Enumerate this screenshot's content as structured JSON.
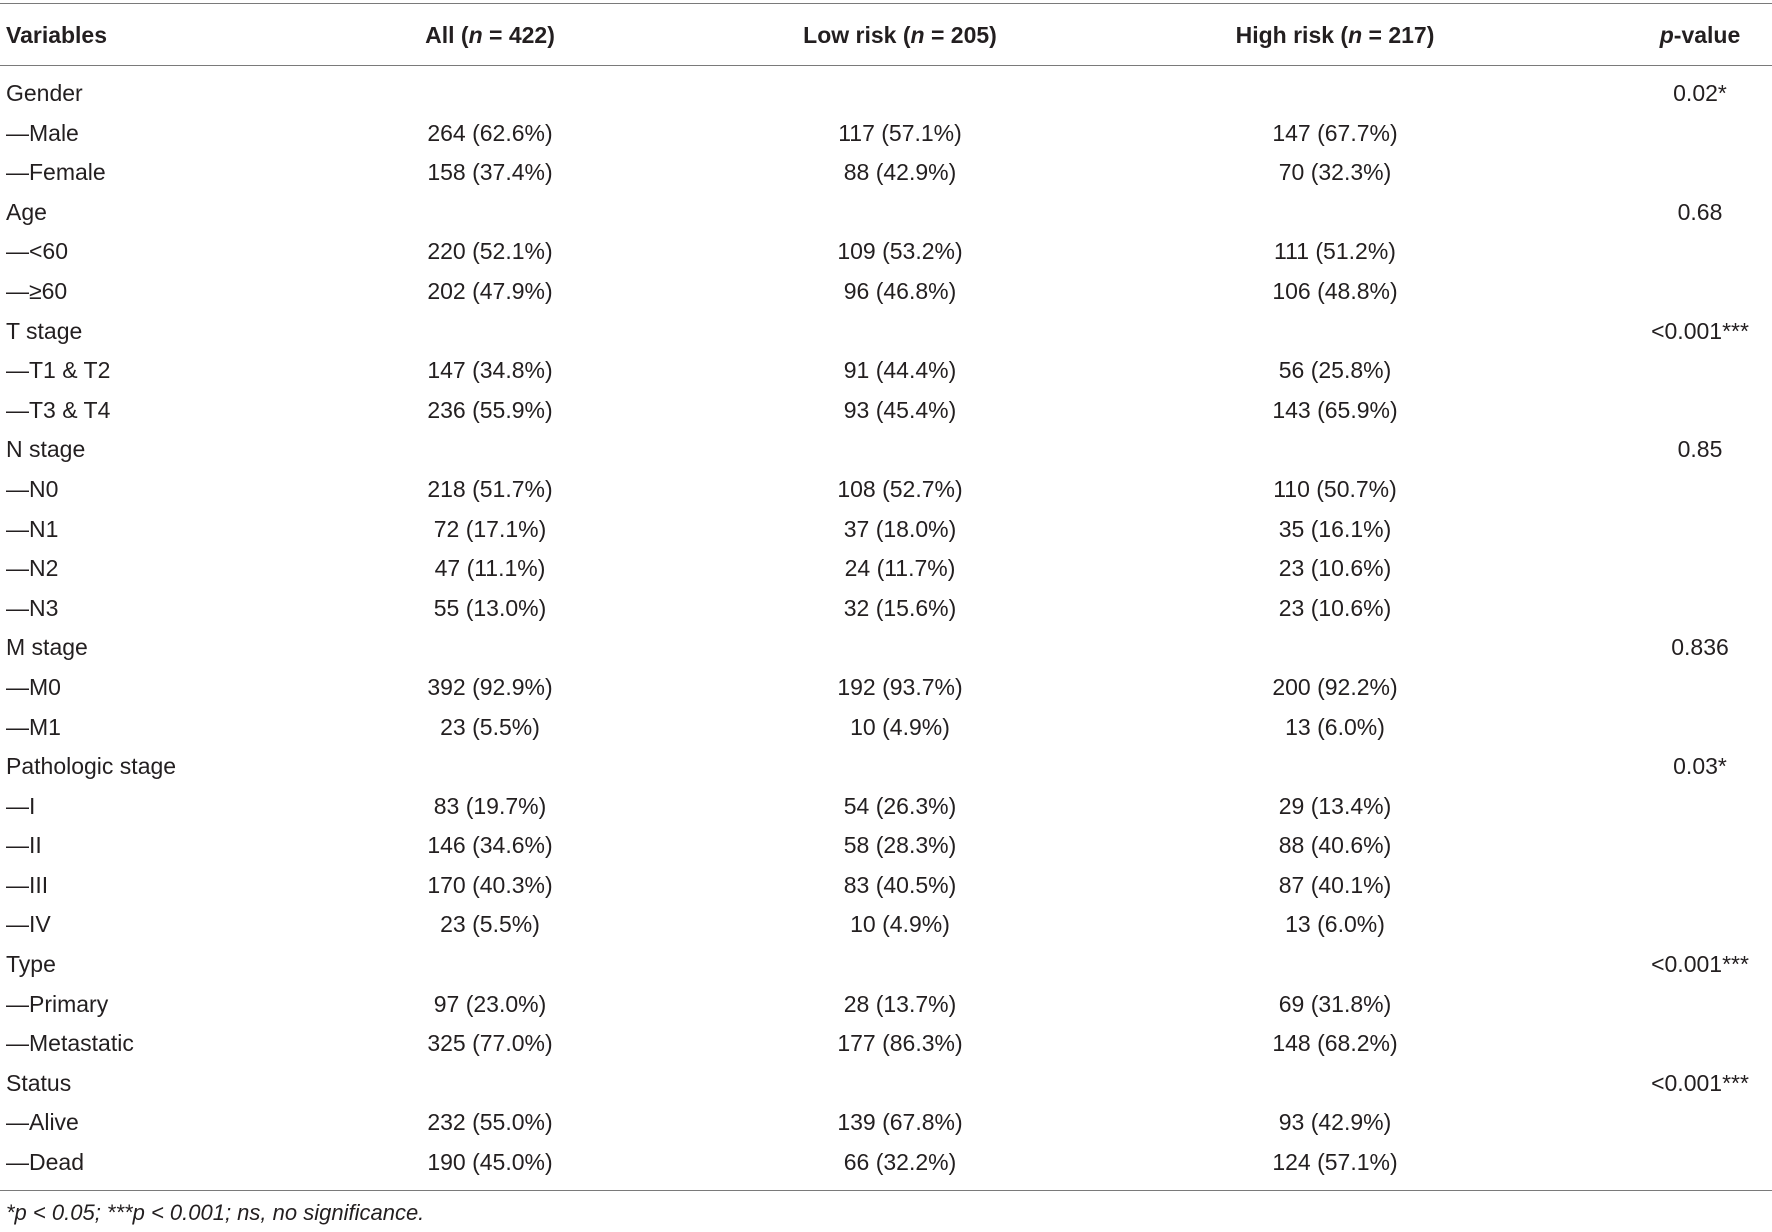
{
  "table": {
    "header": {
      "variables": "Variables",
      "all_prefix": "All (",
      "all_n": "n",
      "all_suffix": " = 422)",
      "low_prefix": "Low risk (",
      "low_n": "n",
      "low_suffix": " = 205)",
      "high_prefix": "High risk (",
      "high_n": "n",
      "high_suffix": " = 217)",
      "p_italic": "p",
      "p_suffix": "-value"
    },
    "rows": [
      {
        "variable": "Gender",
        "all": "",
        "low": "",
        "high": "",
        "p": "0.02*"
      },
      {
        "variable": "—Male",
        "all": "264 (62.6%)",
        "low": "117 (57.1%)",
        "high": "147 (67.7%)",
        "p": ""
      },
      {
        "variable": "—Female",
        "all": "158 (37.4%)",
        "low": "88 (42.9%)",
        "high": "70 (32.3%)",
        "p": ""
      },
      {
        "variable": "Age",
        "all": "",
        "low": "",
        "high": "",
        "p": "0.68"
      },
      {
        "variable": "—<60",
        "all": "220 (52.1%)",
        "low": "109 (53.2%)",
        "high": "111 (51.2%)",
        "p": ""
      },
      {
        "variable": "—≥60",
        "all": "202 (47.9%)",
        "low": "96 (46.8%)",
        "high": "106 (48.8%)",
        "p": ""
      },
      {
        "variable": "T stage",
        "all": "",
        "low": "",
        "high": "",
        "p": "<0.001***"
      },
      {
        "variable": "—T1 & T2",
        "all": "147 (34.8%)",
        "low": "91 (44.4%)",
        "high": "56 (25.8%)",
        "p": ""
      },
      {
        "variable": "—T3 & T4",
        "all": "236 (55.9%)",
        "low": "93 (45.4%)",
        "high": "143 (65.9%)",
        "p": ""
      },
      {
        "variable": "N stage",
        "all": "",
        "low": "",
        "high": "",
        "p": "0.85"
      },
      {
        "variable": "—N0",
        "all": "218 (51.7%)",
        "low": "108 (52.7%)",
        "high": "110 (50.7%)",
        "p": ""
      },
      {
        "variable": "—N1",
        "all": "72 (17.1%)",
        "low": "37 (18.0%)",
        "high": "35 (16.1%)",
        "p": ""
      },
      {
        "variable": "—N2",
        "all": "47 (11.1%)",
        "low": "24 (11.7%)",
        "high": "23 (10.6%)",
        "p": ""
      },
      {
        "variable": "—N3",
        "all": "55 (13.0%)",
        "low": "32 (15.6%)",
        "high": "23 (10.6%)",
        "p": ""
      },
      {
        "variable": "M stage",
        "all": "",
        "low": "",
        "high": "",
        "p": "0.836"
      },
      {
        "variable": "—M0",
        "all": "392 (92.9%)",
        "low": "192 (93.7%)",
        "high": "200 (92.2%)",
        "p": ""
      },
      {
        "variable": "—M1",
        "all": "23 (5.5%)",
        "low": "10 (4.9%)",
        "high": "13 (6.0%)",
        "p": ""
      },
      {
        "variable": "Pathologic stage",
        "all": "",
        "low": "",
        "high": "",
        "p": "0.03*"
      },
      {
        "variable": "—I",
        "all": "83 (19.7%)",
        "low": "54 (26.3%)",
        "high": "29 (13.4%)",
        "p": ""
      },
      {
        "variable": "—II",
        "all": "146 (34.6%)",
        "low": "58 (28.3%)",
        "high": "88 (40.6%)",
        "p": ""
      },
      {
        "variable": "—III",
        "all": "170 (40.3%)",
        "low": "83 (40.5%)",
        "high": "87 (40.1%)",
        "p": ""
      },
      {
        "variable": "—IV",
        "all": "23 (5.5%)",
        "low": "10 (4.9%)",
        "high": "13 (6.0%)",
        "p": ""
      },
      {
        "variable": "Type",
        "all": "",
        "low": "",
        "high": "",
        "p": "<0.001***"
      },
      {
        "variable": "—Primary",
        "all": "97 (23.0%)",
        "low": "28 (13.7%)",
        "high": "69 (31.8%)",
        "p": ""
      },
      {
        "variable": "—Metastatic",
        "all": "325 (77.0%)",
        "low": "177 (86.3%)",
        "high": "148 (68.2%)",
        "p": ""
      },
      {
        "variable": "Status",
        "all": "",
        "low": "",
        "high": "",
        "p": "<0.001***"
      },
      {
        "variable": "—Alive",
        "all": "232 (55.0%)",
        "low": "139 (67.8%)",
        "high": "93 (42.9%)",
        "p": ""
      },
      {
        "variable": "—Dead",
        "all": "190 (45.0%)",
        "low": "66 (32.2%)",
        "high": "124 (57.1%)",
        "p": ""
      }
    ],
    "footnote": "*p < 0.05; ***p < 0.001; ns, no significance."
  }
}
